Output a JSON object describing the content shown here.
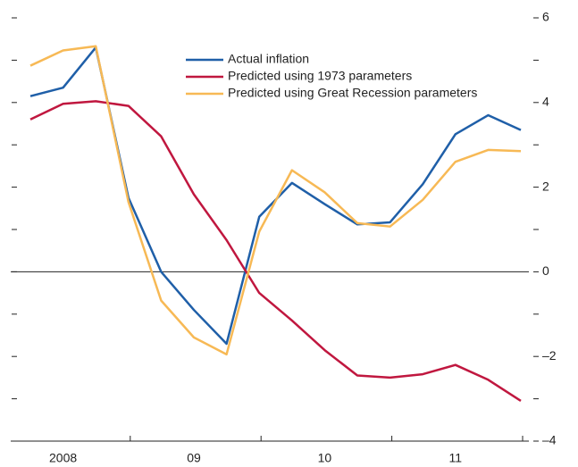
{
  "chart_data": {
    "type": "line",
    "categories": [
      null,
      null,
      null,
      null,
      null,
      null,
      null,
      null,
      null,
      null,
      null,
      null,
      null,
      null,
      null,
      null
    ],
    "year_labels": [
      "2008",
      "09",
      "10",
      "11"
    ],
    "series": [
      {
        "name": "Actual inflation",
        "color": "#1f5fa8",
        "values": [
          4.15,
          4.35,
          5.3,
          1.75,
          0,
          -0.9,
          -1.7,
          1.3,
          2.1,
          1.6,
          1.12,
          1.17,
          2.07,
          3.25,
          3.7,
          3.35
        ]
      },
      {
        "name": "Predicted using 1973 parameters",
        "color": "#c0173f",
        "values": [
          3.6,
          3.97,
          4.03,
          3.92,
          3.2,
          1.83,
          0.75,
          -0.5,
          -1.15,
          -1.85,
          -2.45,
          -2.5,
          -2.42,
          -2.2,
          -2.55,
          -3.05
        ]
      },
      {
        "name": "Predicted using Great Recession parameters",
        "color": "#f7b955",
        "values": [
          4.87,
          5.23,
          5.33,
          1.65,
          -0.68,
          -1.55,
          -1.95,
          0.95,
          2.4,
          1.88,
          1.15,
          1.07,
          1.7,
          2.6,
          2.88,
          2.85
        ]
      }
    ],
    "ylim": [
      -4,
      6
    ],
    "yticks": [
      {
        "value": -4,
        "label": "–4"
      },
      {
        "value": -2,
        "label": "–2"
      },
      0,
      2,
      4,
      6
    ],
    "minor_yticks": [
      -3,
      -1,
      1,
      3,
      5
    ],
    "legend": "top-center"
  }
}
